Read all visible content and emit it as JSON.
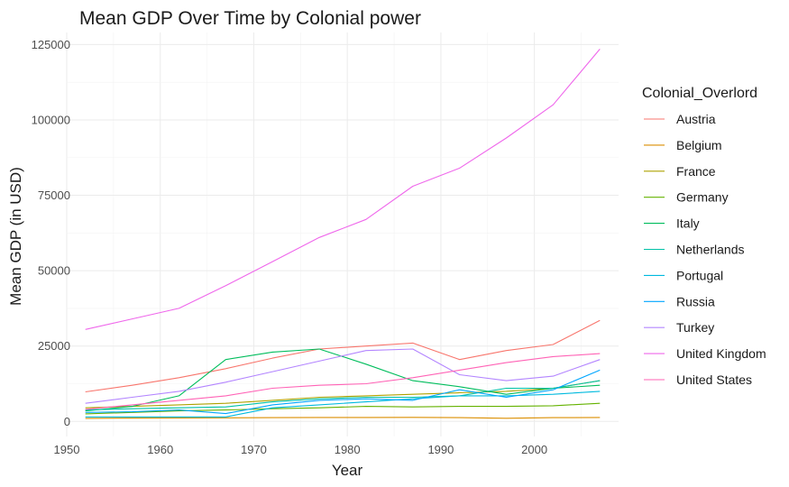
{
  "chart_data": {
    "type": "line",
    "title": "Mean GDP Over Time by Colonial power",
    "xlabel": "Year",
    "ylabel": "Mean GDP (in USD)",
    "xlim": [
      1950,
      2009
    ],
    "ylim": [
      -5000,
      129000
    ],
    "x_ticks": [
      1950,
      1960,
      1970,
      1980,
      1990,
      2000
    ],
    "x_tick_labels": [
      "1950",
      "1960",
      "1970",
      "1980",
      "1990",
      "2000"
    ],
    "y_ticks": [
      0,
      25000,
      50000,
      75000,
      100000,
      125000
    ],
    "y_tick_labels": [
      "0",
      "25000",
      "50000",
      "75000",
      "100000",
      "125000"
    ],
    "grid": true,
    "legend": {
      "title": "Colonial_Overlord",
      "position": "right"
    },
    "x": [
      1952,
      1957,
      1962,
      1967,
      1972,
      1977,
      1982,
      1987,
      1992,
      1997,
      2002,
      2007
    ],
    "series": [
      {
        "name": "Austria",
        "color": "#F8766D",
        "values": [
          9800,
          12000,
          14500,
          17500,
          21000,
          24000,
          25000,
          26000,
          20500,
          23500,
          25500,
          33500
        ]
      },
      {
        "name": "Belgium",
        "color": "#DB8E00",
        "values": [
          1000,
          1100,
          1150,
          1200,
          1250,
          1300,
          1300,
          1350,
          1250,
          1050,
          1250,
          1300
        ]
      },
      {
        "name": "France",
        "color": "#AEA200",
        "values": [
          4500,
          5000,
          5500,
          6000,
          7000,
          8000,
          8500,
          9000,
          9500,
          10000,
          11000,
          13500
        ]
      },
      {
        "name": "Germany",
        "color": "#64B200",
        "values": [
          2500,
          3000,
          3500,
          3800,
          4200,
          4500,
          5000,
          4800,
          5000,
          5000,
          5200,
          6000
        ]
      },
      {
        "name": "Italy",
        "color": "#00BD5C",
        "values": [
          3500,
          5000,
          8500,
          20500,
          23000,
          24000,
          19000,
          13500,
          11500,
          9000,
          11000,
          12000
        ]
      },
      {
        "name": "Netherlands",
        "color": "#00C1A7",
        "values": [
          3800,
          4200,
          4500,
          4800,
          6500,
          7500,
          8000,
          8000,
          8500,
          11000,
          11000,
          13500
        ]
      },
      {
        "name": "Portugal",
        "color": "#00BADE",
        "values": [
          1500,
          1500,
          1500,
          1500,
          4500,
          5500,
          6500,
          7500,
          8500,
          8500,
          9000,
          10000
        ]
      },
      {
        "name": "Russia",
        "color": "#00A6FF",
        "values": [
          3000,
          3200,
          3800,
          2600,
          5500,
          7000,
          7500,
          7000,
          10500,
          8000,
          10500,
          17000
        ]
      },
      {
        "name": "Turkey",
        "color": "#B385FF",
        "values": [
          6000,
          8000,
          10000,
          13000,
          16500,
          20000,
          23500,
          24000,
          15500,
          13500,
          15000,
          20500
        ]
      },
      {
        "name": "United Kingdom",
        "color": "#EF67EB",
        "values": [
          30500,
          34000,
          37500,
          45000,
          53000,
          61000,
          67000,
          78000,
          84000,
          94000,
          105000,
          123500
        ]
      },
      {
        "name": "United States",
        "color": "#FF63B6",
        "values": [
          4000,
          5500,
          7000,
          8500,
          11000,
          12000,
          12500,
          14500,
          17000,
          19500,
          21500,
          22500
        ]
      }
    ]
  }
}
